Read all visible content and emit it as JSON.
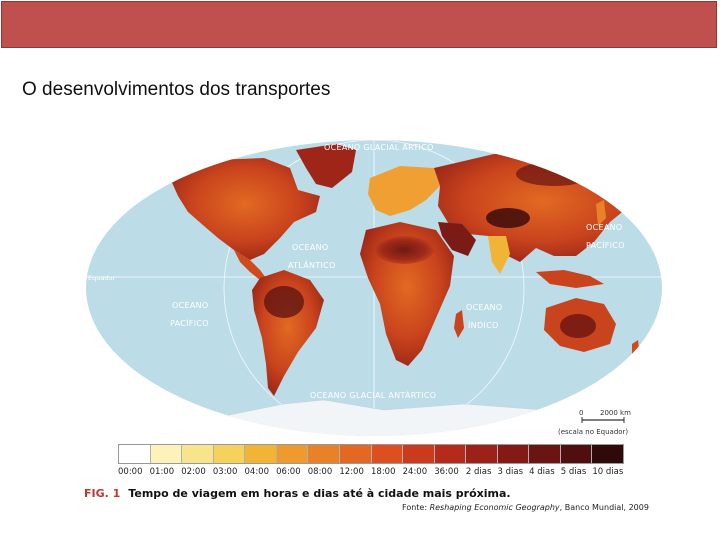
{
  "slide": {
    "title": "O desenvolvimentos dos transportes",
    "banner_color": "#c0504d"
  },
  "map": {
    "ocean_color": "#bcdce8",
    "labels": {
      "arctic": "OCEANO GLACIAL ÁRTICO",
      "atlantic_1": "OCEANO",
      "atlantic_2": "ATLÂNTICO",
      "pacific_west_1": "OCEANO",
      "pacific_west_2": "PACÍFICO",
      "pacific_east_1": "OCEANO",
      "pacific_east_2": "PACÍFICO",
      "indian_1": "OCEANO",
      "indian_2": "ÍNDICO",
      "antarctic": "OCEANO GLACIAL ANTÁRTICO",
      "equator": "Equador"
    },
    "scale": {
      "start": "0",
      "end": "2000 km",
      "note": "(escala no Equador)"
    }
  },
  "legend": {
    "items": [
      {
        "label": "00:00",
        "color": "#ffffff"
      },
      {
        "label": "01:00",
        "color": "#fdf3b8"
      },
      {
        "label": "02:00",
        "color": "#f9e48e"
      },
      {
        "label": "03:00",
        "color": "#f5d25c"
      },
      {
        "label": "04:00",
        "color": "#f2b437"
      },
      {
        "label": "06:00",
        "color": "#ee9a2c"
      },
      {
        "label": "08:00",
        "color": "#e98226"
      },
      {
        "label": "12:00",
        "color": "#e36822"
      },
      {
        "label": "18:00",
        "color": "#dc4f1f"
      },
      {
        "label": "24:00",
        "color": "#cc3a1c"
      },
      {
        "label": "36:00",
        "color": "#b52b1b"
      },
      {
        "label": "2 dias",
        "color": "#9c2119"
      },
      {
        "label": "3 dias",
        "color": "#841a16"
      },
      {
        "label": "4 dias",
        "color": "#6a1413"
      },
      {
        "label": "5 dias",
        "color": "#4f0f10"
      },
      {
        "label": "10 dias",
        "color": "#2e0a0a"
      }
    ]
  },
  "caption": {
    "fig": "FIG. 1",
    "text": "Tempo de viagem em horas e dias até à cidade mais próxima."
  },
  "source": {
    "prefix": "Fonte: ",
    "title": "Reshaping Economic Geography",
    "suffix": ", Banco Mundial, 2009"
  }
}
